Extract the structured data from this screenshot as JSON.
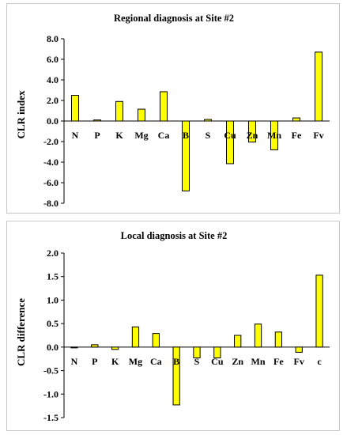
{
  "chart_data": [
    {
      "type": "bar",
      "title": "Regional diagnosis at Site #2",
      "xlabel": "",
      "ylabel": "CLR index",
      "ylim": [
        -8,
        8
      ],
      "yticks": [
        "8.0",
        "6.0",
        "4.0",
        "2.0",
        "0.0",
        "-2.0",
        "-4.0",
        "-6.0",
        "-8.0"
      ],
      "categories": [
        "N",
        "P",
        "K",
        "Mg",
        "Ca",
        "B",
        "S",
        "Cu",
        "Zn",
        "Mn",
        "Fe",
        "Fv"
      ],
      "values": [
        2.5,
        0.1,
        1.9,
        1.15,
        2.85,
        -6.8,
        0.15,
        -4.15,
        -2.05,
        -2.8,
        0.3,
        6.7
      ],
      "grid": false,
      "bar_color": "#ffff00"
    },
    {
      "type": "bar",
      "title": "Local diagnosis at Site #2",
      "xlabel": "",
      "ylabel": "CLR difference",
      "ylim": [
        -1.5,
        2.0
      ],
      "yticks": [
        "2.0",
        "1.5",
        "1.0",
        "0.5",
        "0.0",
        "-0.5",
        "-1.0",
        "-1.5"
      ],
      "categories": [
        "N",
        "P",
        "K",
        "Mg",
        "Ca",
        "B",
        "S",
        "Cu",
        "Zn",
        "Mn",
        "Fe",
        "Fv",
        "c"
      ],
      "values": [
        -0.01,
        0.05,
        -0.05,
        0.43,
        0.29,
        -1.23,
        -0.23,
        -0.23,
        0.25,
        0.49,
        0.32,
        -0.11,
        1.53
      ],
      "grid": false,
      "bar_color": "#ffff00"
    }
  ]
}
